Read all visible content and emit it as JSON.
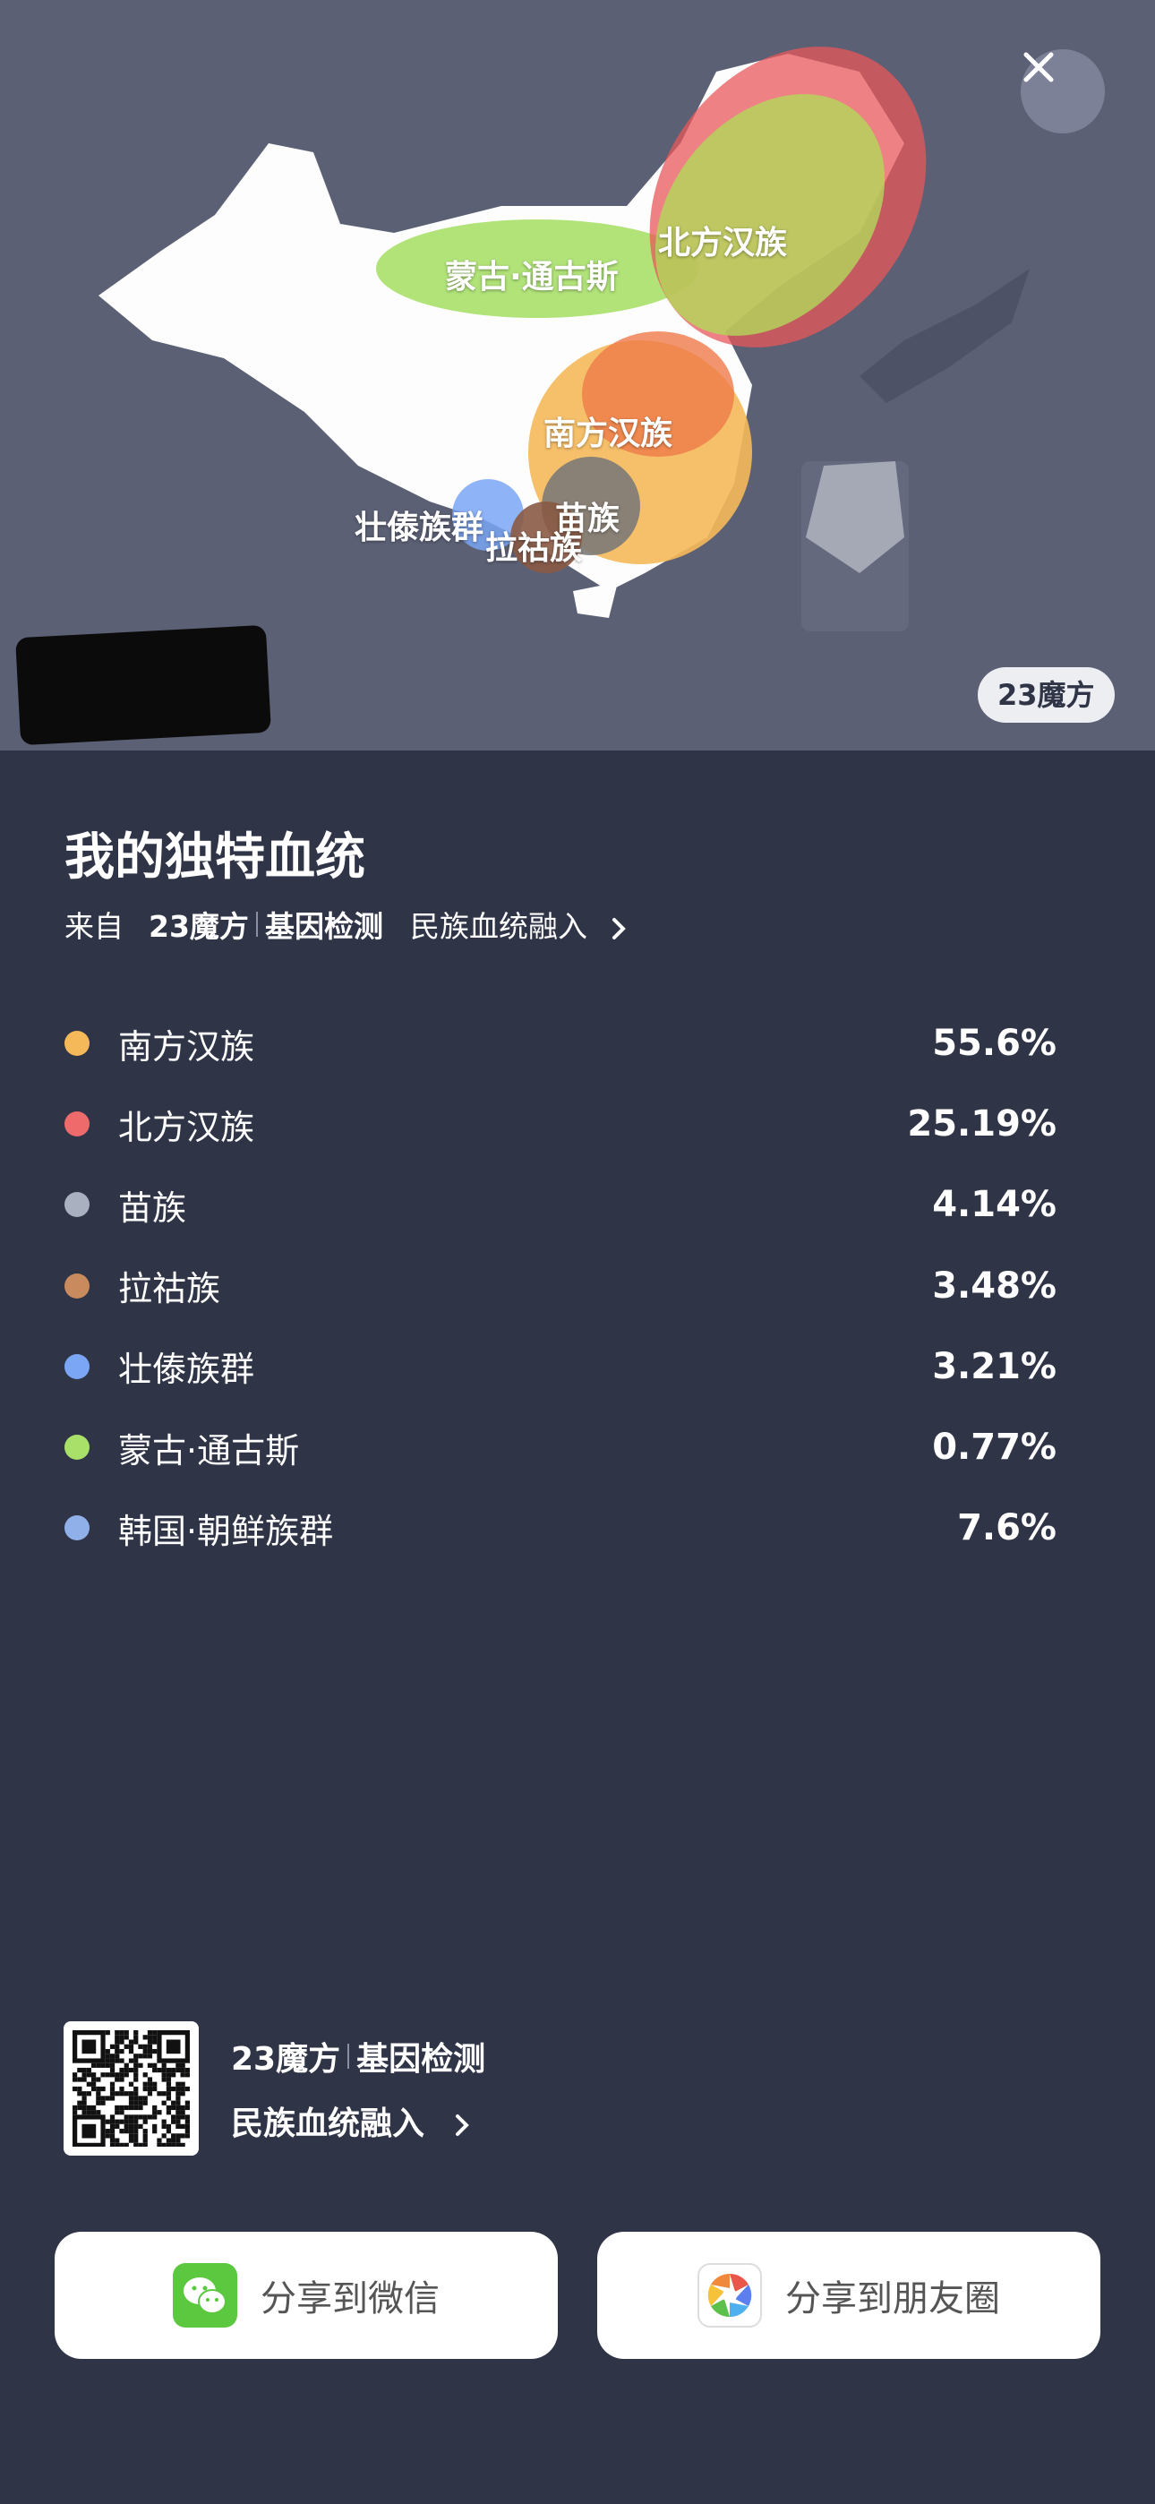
{
  "map": {
    "labels": {
      "mongolic_tungusic": "蒙古·通古斯",
      "northern_han": "北方汉族",
      "southern_han": "南方汉族",
      "miao": "苗族",
      "zhuang_dai": "壮傣族群",
      "lahu": "拉祜族"
    },
    "badge": "23魔方",
    "close_icon": "close-icon"
  },
  "header": {
    "title": "我的独特血统",
    "from_label": "来自",
    "brand": "23魔方",
    "service": "基因检测",
    "link": "民族血统融入",
    "link_icon": "chevron-right-icon"
  },
  "ancestry": [
    {
      "name": "南方汉族",
      "percent": "55.6%",
      "color": "#f5b95a"
    },
    {
      "name": "北方汉族",
      "percent": "25.19%",
      "color": "#ef6b6b"
    },
    {
      "name": "苗族",
      "percent": "4.14%",
      "color": "#a9b0c0"
    },
    {
      "name": "拉祜族",
      "percent": "3.48%",
      "color": "#c98a5e"
    },
    {
      "name": "壮傣族群",
      "percent": "3.21%",
      "color": "#7aa6f5"
    },
    {
      "name": "蒙古·通古斯",
      "percent": "0.77%",
      "color": "#a8e06a"
    },
    {
      "name": "韩国·朝鲜族群",
      "percent": "7.6%",
      "color": "#8fb0e8"
    }
  ],
  "footer": {
    "brand": "23魔方",
    "service": "基因检测",
    "link": "民族血统融入"
  },
  "share": {
    "wechat": "分享到微信",
    "moments": "分享到朋友圈",
    "wechat_color": "#5bc83f"
  }
}
